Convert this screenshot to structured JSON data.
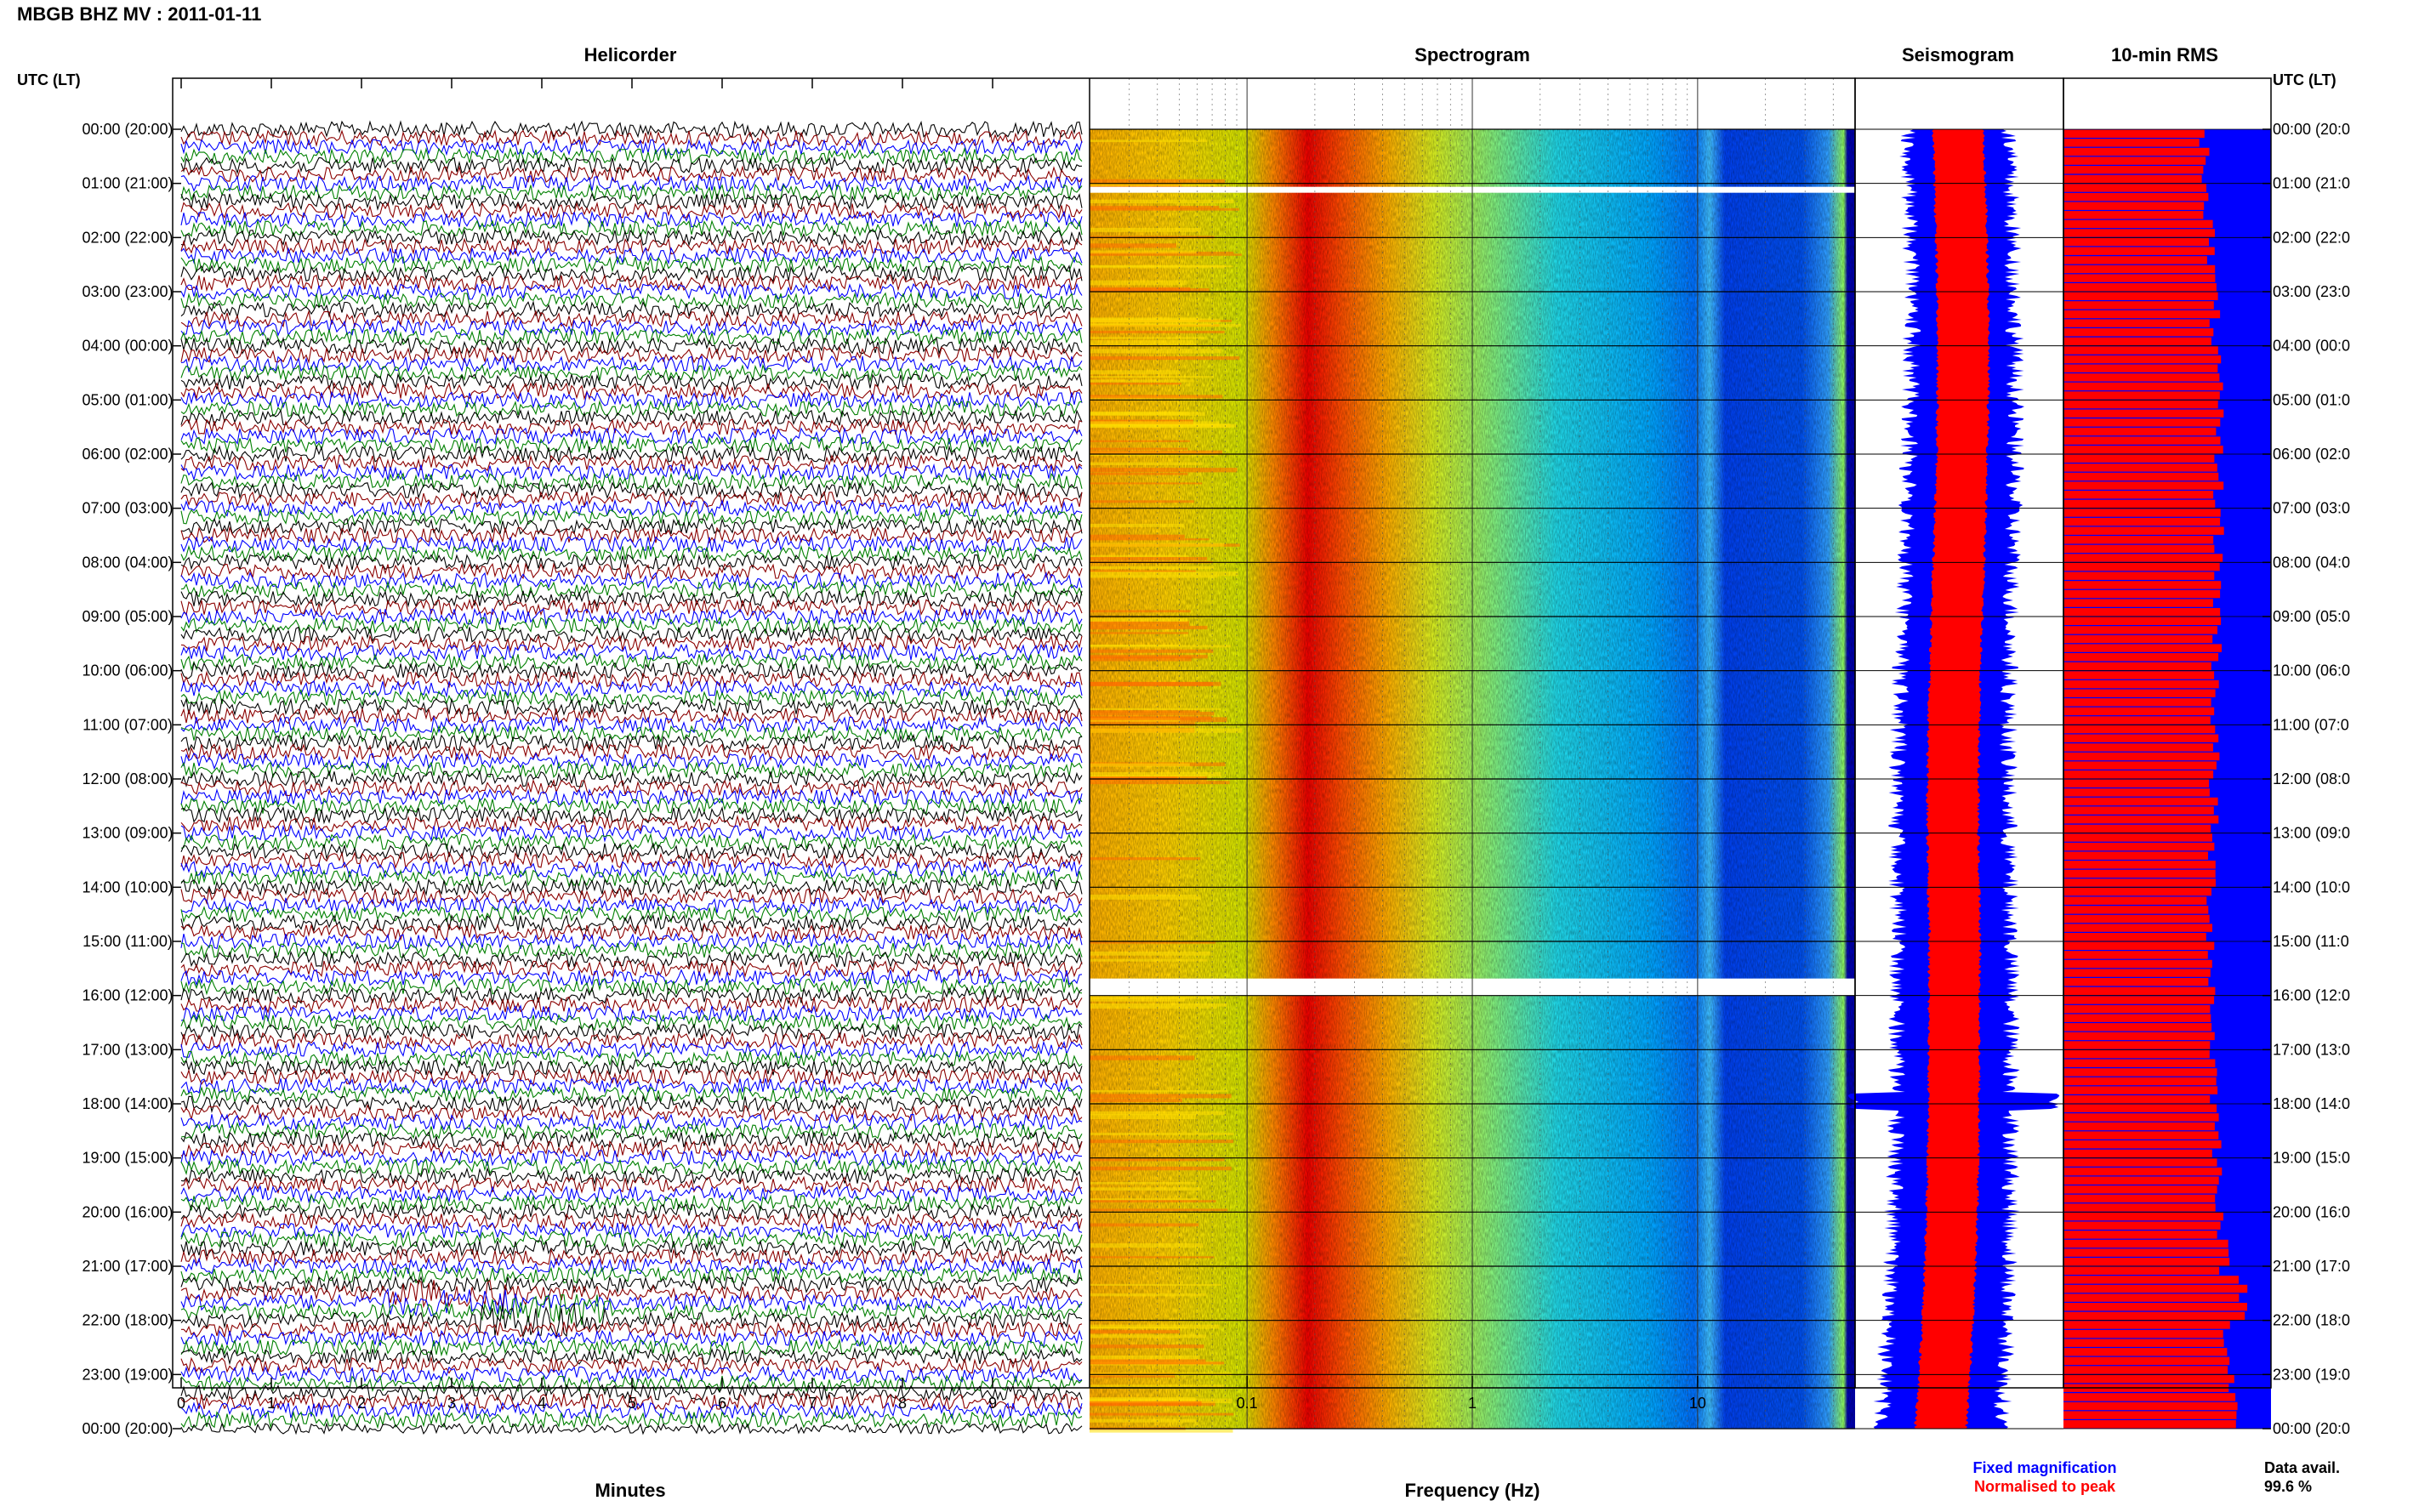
{
  "header": {
    "title": "MBGB BHZ MV : 2011-01-11"
  },
  "panels": {
    "helicorder": "Helicorder",
    "spectrogram": "Spectrogram",
    "seismogram": "Seismogram",
    "rms": "10-min RMS"
  },
  "axis_headers": {
    "left": "UTC (LT)",
    "right": "UTC (LT)"
  },
  "time_labels_left": [
    "00:00 (20:00)",
    "01:00 (21:00)",
    "02:00 (22:00)",
    "03:00 (23:00)",
    "04:00 (00:00)",
    "05:00 (01:00)",
    "06:00 (02:00)",
    "07:00 (03:00)",
    "08:00 (04:00)",
    "09:00 (05:00)",
    "10:00 (06:00)",
    "11:00 (07:00)",
    "12:00 (08:00)",
    "13:00 (09:00)",
    "14:00 (10:00)",
    "15:00 (11:00)",
    "16:00 (12:00)",
    "17:00 (13:00)",
    "18:00 (14:00)",
    "19:00 (15:00)",
    "20:00 (16:00)",
    "21:00 (17:00)",
    "22:00 (18:00)",
    "23:00 (19:00)",
    "00:00 (20:00)"
  ],
  "time_labels_right": [
    "00:00 (20:0",
    "01:00 (21:0",
    "02:00 (22:0",
    "03:00 (23:0",
    "04:00 (00:0",
    "05:00 (01:0",
    "06:00 (02:0",
    "07:00 (03:0",
    "08:00 (04:0",
    "09:00 (05:0",
    "10:00 (06:0",
    "11:00 (07:0",
    "12:00 (08:0",
    "13:00 (09:0",
    "14:00 (10:0",
    "15:00 (11:0",
    "16:00 (12:0",
    "17:00 (13:0",
    "18:00 (14:0",
    "19:00 (15:0",
    "20:00 (16:0",
    "21:00 (17:0",
    "22:00 (18:0",
    "23:00 (19:0",
    "00:00 (20:0"
  ],
  "footer": {
    "legend_fixed": "Fixed magnification",
    "legend_normalised": "Normalised to peak",
    "data_avail_label": "Data avail.",
    "data_avail_value": "99.6 %"
  },
  "colors": {
    "trace_colors": [
      "#000000",
      "#8b0000",
      "#0000ff",
      "#008000"
    ],
    "fixed_magnification": "#0000ff",
    "normalised_to_peak": "#ff0000",
    "spectrogram_low": "#0000c8",
    "spectrogram_high": "#ff0000"
  },
  "chart_data": [
    {
      "type": "line",
      "title": "Helicorder",
      "xlabel": "Minutes",
      "x_ticks": [
        "0",
        "1",
        "2",
        "3",
        "4",
        "5",
        "6",
        "7",
        "8",
        "9"
      ],
      "xlim": [
        0,
        10
      ],
      "y_ticks": "time_labels_left",
      "rows_per_hour": 6,
      "row_minutes": 10,
      "notes_events": [
        "strong dark-red burst near 21:30 around minute 3",
        "strong dark-red burst near 21:40 around minute 4"
      ]
    },
    {
      "type": "heatmap",
      "title": "Spectrogram",
      "xlabel": "Frequency (Hz)",
      "x_scale": "log",
      "x_ticks": [
        "0.1",
        "1",
        "10"
      ],
      "xlim": [
        0.02,
        50
      ],
      "gaps_utc": [
        "01:00",
        "16:00"
      ],
      "dominant_band_hz": [
        0.2,
        0.5
      ]
    },
    {
      "type": "area",
      "title": "Seismogram",
      "series": [
        {
          "name": "Fixed magnification",
          "color": "#0000ff"
        },
        {
          "name": "Normalised to peak",
          "color": "#ff0000"
        }
      ],
      "event_utc": "17:55"
    },
    {
      "type": "bar",
      "title": "10-min RMS",
      "orientation": "horizontal",
      "series": [
        {
          "name": "Fixed magnification",
          "color": "#0000ff"
        },
        {
          "name": "Normalised to peak",
          "color": "#ff0000"
        }
      ],
      "data_availability_percent": 99.6
    }
  ]
}
